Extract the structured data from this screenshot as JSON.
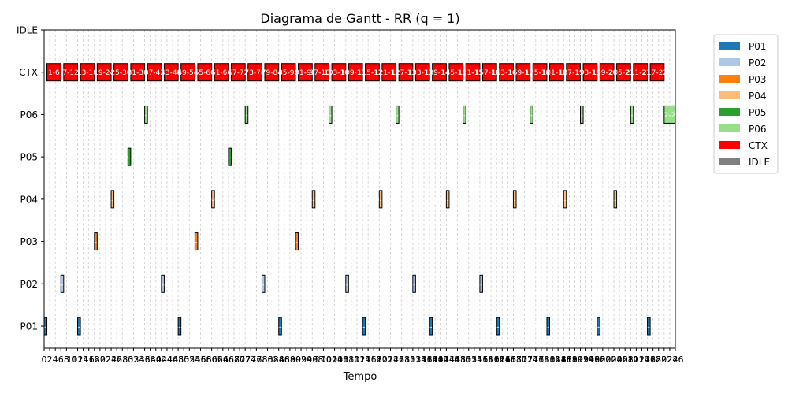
{
  "chart_data": {
    "type": "gantt",
    "title": "Diagrama de Gantt - RR (q = 1)",
    "xlabel": "Tempo",
    "ylabel": "",
    "xlim": [
      0,
      226
    ],
    "x_tick_step": 2,
    "categories": [
      "P01",
      "P02",
      "P03",
      "P04",
      "P05",
      "P06",
      "CTX",
      "IDLE"
    ],
    "colors": {
      "P01": "#1f77b4",
      "P02": "#aec7e8",
      "P03": "#ff7f0e",
      "P04": "#ffbb78",
      "P05": "#2ca02c",
      "P06": "#98df8a",
      "CTX": "#ff0000",
      "IDLE": "#7f7f7f"
    },
    "legend": {
      "placement": "outside-right",
      "entries": [
        "P01",
        "P02",
        "P03",
        "P04",
        "P05",
        "P06",
        "CTX",
        "IDLE"
      ]
    },
    "grid": "x-dashed",
    "ctx_segments": [
      {
        "start": 1,
        "end": 6,
        "label": "1-6"
      },
      {
        "start": 7,
        "end": 12,
        "label": "7-12"
      },
      {
        "start": 13,
        "end": 18,
        "label": "13-18"
      },
      {
        "start": 19,
        "end": 24,
        "label": "19-24"
      },
      {
        "start": 25,
        "end": 30,
        "label": "25-30"
      },
      {
        "start": 31,
        "end": 36,
        "label": "31-36"
      },
      {
        "start": 37,
        "end": 42,
        "label": "37-42"
      },
      {
        "start": 43,
        "end": 48,
        "label": "43-48"
      },
      {
        "start": 49,
        "end": 54,
        "label": "49-54"
      },
      {
        "start": 55,
        "end": 60,
        "label": "55-60"
      },
      {
        "start": 61,
        "end": 66,
        "label": "61-66"
      },
      {
        "start": 67,
        "end": 72,
        "label": "67-72"
      },
      {
        "start": 73,
        "end": 78,
        "label": "73-78"
      },
      {
        "start": 79,
        "end": 84,
        "label": "79-84"
      },
      {
        "start": 85,
        "end": 90,
        "label": "85-90"
      },
      {
        "start": 91,
        "end": 96,
        "label": "91-96"
      },
      {
        "start": 97,
        "end": 102,
        "label": "97-102"
      },
      {
        "start": 103,
        "end": 108,
        "label": "103-108"
      },
      {
        "start": 109,
        "end": 114,
        "label": "109-114"
      },
      {
        "start": 115,
        "end": 120,
        "label": "115-120"
      },
      {
        "start": 121,
        "end": 126,
        "label": "121-126"
      },
      {
        "start": 127,
        "end": 132,
        "label": "127-132"
      },
      {
        "start": 133,
        "end": 138,
        "label": "133-138"
      },
      {
        "start": 139,
        "end": 144,
        "label": "139-144"
      },
      {
        "start": 145,
        "end": 150,
        "label": "145-150"
      },
      {
        "start": 151,
        "end": 156,
        "label": "151-156"
      },
      {
        "start": 157,
        "end": 162,
        "label": "157-162"
      },
      {
        "start": 163,
        "end": 168,
        "label": "163-168"
      },
      {
        "start": 169,
        "end": 174,
        "label": "169-174"
      },
      {
        "start": 175,
        "end": 180,
        "label": "175-180"
      },
      {
        "start": 181,
        "end": 186,
        "label": "181-186"
      },
      {
        "start": 187,
        "end": 192,
        "label": "187-192"
      },
      {
        "start": 193,
        "end": 198,
        "label": "193-198"
      },
      {
        "start": 199,
        "end": 204,
        "label": "199-204"
      },
      {
        "start": 205,
        "end": 210,
        "label": "205-210"
      },
      {
        "start": 211,
        "end": 216,
        "label": "211-216"
      },
      {
        "start": 217,
        "end": 222,
        "label": "217-222"
      }
    ],
    "process_segments": [
      {
        "process": "P01",
        "start": 0,
        "end": 1,
        "label": "0-1"
      },
      {
        "process": "P01",
        "start": 12,
        "end": 13,
        "label": "12-13"
      },
      {
        "process": "P01",
        "start": 48,
        "end": 49,
        "label": "48-49"
      },
      {
        "process": "P01",
        "start": 84,
        "end": 85,
        "label": "84-85"
      },
      {
        "process": "P01",
        "start": 114,
        "end": 115,
        "label": "114-115"
      },
      {
        "process": "P01",
        "start": 138,
        "end": 139,
        "label": "138-139"
      },
      {
        "process": "P01",
        "start": 162,
        "end": 163,
        "label": "162-163"
      },
      {
        "process": "P01",
        "start": 180,
        "end": 181,
        "label": "180-181"
      },
      {
        "process": "P01",
        "start": 198,
        "end": 199,
        "label": "198-199"
      },
      {
        "process": "P01",
        "start": 216,
        "end": 217,
        "label": "216-217"
      },
      {
        "process": "P02",
        "start": 6,
        "end": 7,
        "label": "6-7"
      },
      {
        "process": "P02",
        "start": 42,
        "end": 43,
        "label": "42-43"
      },
      {
        "process": "P02",
        "start": 78,
        "end": 79,
        "label": "78-79"
      },
      {
        "process": "P02",
        "start": 108,
        "end": 109,
        "label": "108-109"
      },
      {
        "process": "P02",
        "start": 132,
        "end": 133,
        "label": "132-133"
      },
      {
        "process": "P02",
        "start": 156,
        "end": 157,
        "label": "156-157"
      },
      {
        "process": "P03",
        "start": 18,
        "end": 19,
        "label": "18-19"
      },
      {
        "process": "P03",
        "start": 54,
        "end": 55,
        "label": "54-55"
      },
      {
        "process": "P03",
        "start": 90,
        "end": 91,
        "label": "90-91"
      },
      {
        "process": "P04",
        "start": 24,
        "end": 25,
        "label": "24-25"
      },
      {
        "process": "P04",
        "start": 60,
        "end": 61,
        "label": "60-61"
      },
      {
        "process": "P04",
        "start": 96,
        "end": 97,
        "label": "96-97"
      },
      {
        "process": "P04",
        "start": 120,
        "end": 121,
        "label": "120-121"
      },
      {
        "process": "P04",
        "start": 144,
        "end": 145,
        "label": "144-145"
      },
      {
        "process": "P04",
        "start": 168,
        "end": 169,
        "label": "168-169"
      },
      {
        "process": "P04",
        "start": 186,
        "end": 187,
        "label": "186-187"
      },
      {
        "process": "P04",
        "start": 204,
        "end": 205,
        "label": "204-205"
      },
      {
        "process": "P05",
        "start": 30,
        "end": 31,
        "label": "30-31"
      },
      {
        "process": "P05",
        "start": 66,
        "end": 67,
        "label": "66-67"
      },
      {
        "process": "P06",
        "start": 36,
        "end": 37,
        "label": "36-37"
      },
      {
        "process": "P06",
        "start": 72,
        "end": 73,
        "label": "72-73"
      },
      {
        "process": "P06",
        "start": 102,
        "end": 103,
        "label": "102-103"
      },
      {
        "process": "P06",
        "start": 126,
        "end": 127,
        "label": "126-127"
      },
      {
        "process": "P06",
        "start": 150,
        "end": 151,
        "label": "150-151"
      },
      {
        "process": "P06",
        "start": 174,
        "end": 175,
        "label": "174-175"
      },
      {
        "process": "P06",
        "start": 192,
        "end": 193,
        "label": "192-193"
      },
      {
        "process": "P06",
        "start": 210,
        "end": 211,
        "label": "210-211"
      },
      {
        "process": "P06",
        "start": 222,
        "end": 226,
        "label": "222-226"
      }
    ]
  }
}
